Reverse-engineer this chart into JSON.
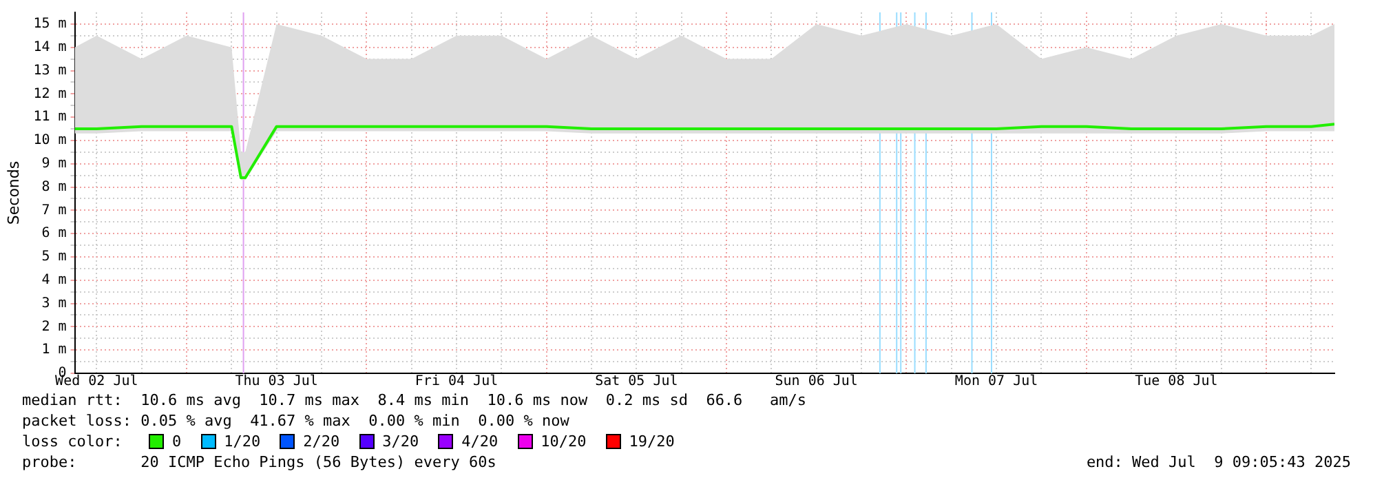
{
  "chart_data": {
    "type": "line",
    "ylabel": "Seconds",
    "legend_title": "loss color:",
    "legend": "bottom",
    "grid": true,
    "xlim": [
      "2025-07-02T09:05",
      "2025-07-09T09:05"
    ],
    "xticks": [
      {
        "value": "2025-07-02T12:00",
        "label": "Wed 02 Jul"
      },
      {
        "value": "2025-07-02T18:00",
        "label": null
      },
      {
        "value": "2025-07-03T00:00",
        "label": null
      },
      {
        "value": "2025-07-03T06:00",
        "label": null
      },
      {
        "value": "2025-07-03T12:00",
        "label": "Thu 03 Jul"
      },
      {
        "value": "2025-07-03T18:00",
        "label": null
      },
      {
        "value": "2025-07-04T00:00",
        "label": null
      },
      {
        "value": "2025-07-04T06:00",
        "label": null
      },
      {
        "value": "2025-07-04T12:00",
        "label": "Fri 04 Jul"
      },
      {
        "value": "2025-07-04T18:00",
        "label": null
      },
      {
        "value": "2025-07-05T00:00",
        "label": null
      },
      {
        "value": "2025-07-05T06:00",
        "label": null
      },
      {
        "value": "2025-07-05T12:00",
        "label": "Sat 05 Jul"
      },
      {
        "value": "2025-07-05T18:00",
        "label": null
      },
      {
        "value": "2025-07-06T00:00",
        "label": null
      },
      {
        "value": "2025-07-06T06:00",
        "label": null
      },
      {
        "value": "2025-07-06T12:00",
        "label": "Sun 06 Jul"
      },
      {
        "value": "2025-07-06T18:00",
        "label": null
      },
      {
        "value": "2025-07-07T00:00",
        "label": null
      },
      {
        "value": "2025-07-07T06:00",
        "label": null
      },
      {
        "value": "2025-07-07T12:00",
        "label": "Mon 07 Jul"
      },
      {
        "value": "2025-07-07T18:00",
        "label": null
      },
      {
        "value": "2025-07-08T00:00",
        "label": null
      },
      {
        "value": "2025-07-08T06:00",
        "label": null
      },
      {
        "value": "2025-07-08T12:00",
        "label": "Tue 08 Jul"
      },
      {
        "value": "2025-07-08T18:00",
        "label": null
      },
      {
        "value": "2025-07-09T00:00",
        "label": null
      },
      {
        "value": "2025-07-09T06:00",
        "label": null
      }
    ],
    "ylim": [
      0,
      15.5
    ],
    "yticks": [
      0,
      {
        "value": 0.5,
        "label": null
      },
      {
        "value": 1,
        "label": "1 m"
      },
      {
        "value": 1.5,
        "label": null
      },
      {
        "value": 2,
        "label": "2 m"
      },
      {
        "value": 2.5,
        "label": null
      },
      {
        "value": 3,
        "label": "3 m"
      },
      {
        "value": 3.5,
        "label": null
      },
      {
        "value": 4,
        "label": "4 m"
      },
      {
        "value": 4.5,
        "label": null
      },
      {
        "value": 5,
        "label": "5 m"
      },
      {
        "value": 5.5,
        "label": null
      },
      {
        "value": 6,
        "label": "6 m"
      },
      {
        "value": 6.5,
        "label": null
      },
      {
        "value": 7,
        "label": "7 m"
      },
      {
        "value": 7.5,
        "label": null
      },
      {
        "value": 8,
        "label": "8 m"
      },
      {
        "value": 8.5,
        "label": null
      },
      {
        "value": 9,
        "label": "9 m"
      },
      {
        "value": 9.5,
        "label": null
      },
      {
        "value": 10,
        "label": "10 m"
      },
      {
        "value": 10.5,
        "label": null
      },
      {
        "value": 11,
        "label": "11 m"
      },
      {
        "value": 11.5,
        "label": null
      },
      {
        "value": 12,
        "label": "12 m"
      },
      {
        "value": 12.5,
        "label": null
      },
      {
        "value": 13,
        "label": "13 m"
      },
      {
        "value": 13.5,
        "label": null
      },
      {
        "value": 14,
        "label": "14 m"
      },
      {
        "value": 14.5,
        "label": null
      },
      {
        "value": 15,
        "label": "15 m"
      }
    ],
    "series": [
      {
        "name": "0",
        "color": "#22ee00",
        "x": [
          "2025-07-02T09:05",
          "2025-07-02T12:00",
          "2025-07-02T18:00",
          "2025-07-03T00:00",
          "2025-07-03T06:00",
          "2025-07-03T07:15",
          "2025-07-03T07:50",
          "2025-07-03T12:00",
          "2025-07-03T18:00",
          "2025-07-04T00:00",
          "2025-07-04T06:00",
          "2025-07-04T12:00",
          "2025-07-04T18:00",
          "2025-07-05T00:00",
          "2025-07-05T06:00",
          "2025-07-05T12:00",
          "2025-07-05T18:00",
          "2025-07-06T00:00",
          "2025-07-06T06:00",
          "2025-07-06T12:00",
          "2025-07-06T18:00",
          "2025-07-07T00:00",
          "2025-07-07T06:00",
          "2025-07-07T12:00",
          "2025-07-07T18:00",
          "2025-07-08T00:00",
          "2025-07-08T06:00",
          "2025-07-08T12:00",
          "2025-07-08T18:00",
          "2025-07-09T00:00",
          "2025-07-09T06:00",
          "2025-07-09T09:05"
        ],
        "values": [
          10.5,
          10.5,
          10.6,
          10.6,
          10.6,
          8.4,
          8.4,
          10.6,
          10.6,
          10.6,
          10.6,
          10.6,
          10.6,
          10.6,
          10.5,
          10.5,
          10.5,
          10.5,
          10.5,
          10.5,
          10.5,
          10.5,
          10.5,
          10.5,
          10.6,
          10.6,
          10.5,
          10.5,
          10.5,
          10.6,
          10.6,
          10.7
        ],
        "lower": [
          10.3,
          10.3,
          10.4,
          10.4,
          10.4,
          8.3,
          8.3,
          10.4,
          10.4,
          10.4,
          10.4,
          10.4,
          10.4,
          10.4,
          10.3,
          10.3,
          10.3,
          10.3,
          10.3,
          10.3,
          10.3,
          10.3,
          10.3,
          10.3,
          10.3,
          10.3,
          10.3,
          10.3,
          10.3,
          10.4,
          10.4,
          10.4
        ],
        "upper": [
          14,
          14.5,
          13.5,
          14.5,
          14,
          9.5,
          9.5,
          15,
          14.5,
          13.5,
          13.5,
          14.5,
          14.5,
          13.5,
          14.5,
          13.5,
          14.5,
          13.5,
          13.5,
          15,
          14.5,
          15,
          14.5,
          15,
          13.5,
          14,
          13.5,
          14.5,
          15,
          14.5,
          14.5,
          15
        ]
      },
      {
        "name": "1/20",
        "color": "#00bbff"
      },
      {
        "name": "2/20",
        "color": "#0055ff"
      },
      {
        "name": "3/20",
        "color": "#5500ff"
      },
      {
        "name": "4/20",
        "color": "#9900ff"
      },
      {
        "name": "10/20",
        "color": "#ee00ee"
      },
      {
        "name": "19/20",
        "color": "#ff0000"
      }
    ],
    "ref_lines": [
      {
        "axis": "x",
        "value": "2025-07-03T07:35",
        "color": "#e0a0f0"
      },
      {
        "axis": "x",
        "value": "2025-07-06T20:28",
        "color": "#99ddff"
      },
      {
        "axis": "x",
        "value": "2025-07-06T22:42",
        "color": "#99ddff"
      },
      {
        "axis": "x",
        "value": "2025-07-06T23:15",
        "color": "#99ddff"
      },
      {
        "axis": "x",
        "value": "2025-07-07T01:07",
        "color": "#99ddff"
      },
      {
        "axis": "x",
        "value": "2025-07-07T02:37",
        "color": "#99ddff"
      },
      {
        "axis": "x",
        "value": "2025-07-07T08:44",
        "color": "#99ddff"
      },
      {
        "axis": "x",
        "value": "2025-07-07T11:21",
        "color": "#99ddff"
      }
    ],
    "annotations": [
      "median rtt:  10.6 ms avg  10.7 ms max  8.4 ms min  10.6 ms now  0.2 ms sd  66.6   am/s",
      "packet loss: 0.05 % avg  41.67 % max  0.00 % min  0.00 % now",
      "probe:       20 ICMP Echo Pings (56 Bytes) every 60s",
      "end: Wed Jul  9 09:05:43 2025"
    ]
  }
}
